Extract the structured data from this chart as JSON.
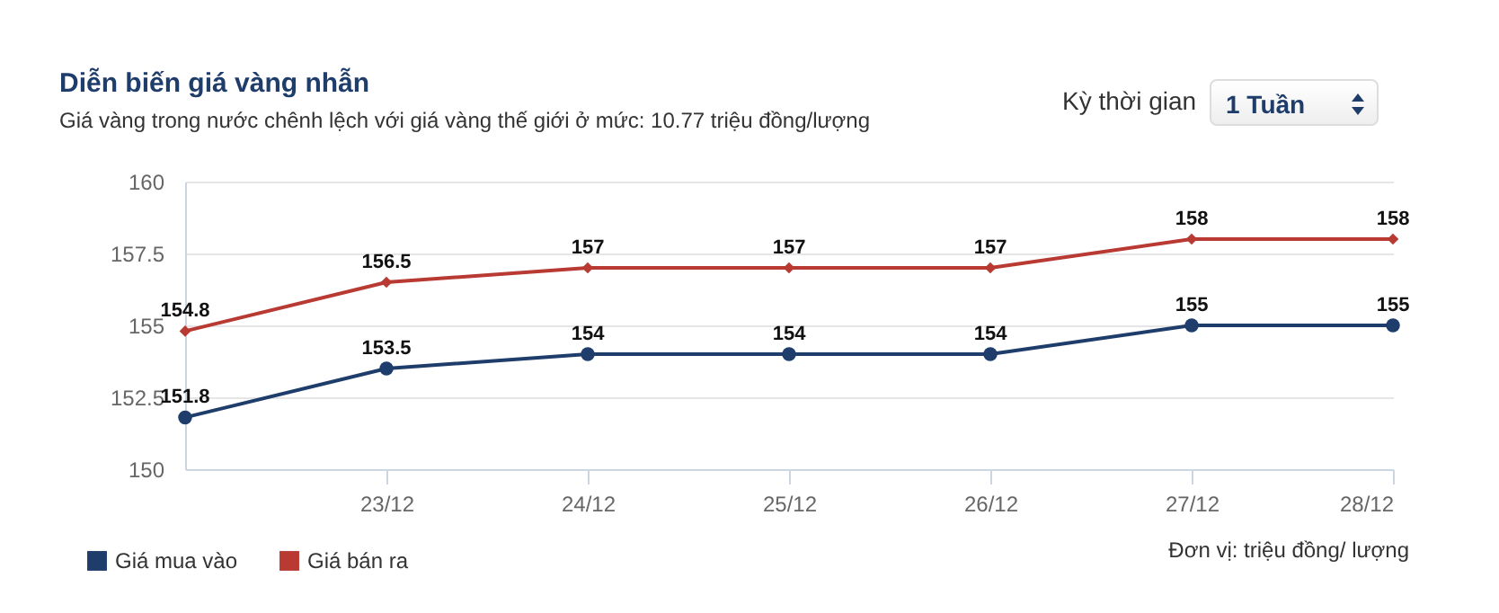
{
  "chart_data": {
    "type": "line",
    "title": "Diễn biến giá vàng nhẫn",
    "subtitle": "Giá vàng trong nước chênh lệch với giá vàng thế giới ở mức: 10.77 triệu đồng/lượng",
    "x": [
      "--12-22",
      "--12-23",
      "--12-24",
      "--12-25",
      "--12-26",
      "--12-27",
      "--12-28"
    ],
    "xlim": [
      "--12-22",
      "--12-28"
    ],
    "xticks": [
      {
        "value": "--12-23",
        "label": "23/12"
      },
      {
        "value": "--12-24",
        "label": "24/12"
      },
      {
        "value": "--12-25",
        "label": "25/12"
      },
      {
        "value": "--12-26",
        "label": "26/12"
      },
      {
        "value": "--12-27",
        "label": "27/12"
      },
      {
        "value": "--12-28",
        "label": "28/12"
      }
    ],
    "ylim": [
      150,
      160
    ],
    "yticks": [
      150,
      152.5,
      155,
      157.5,
      160
    ],
    "series": [
      {
        "name": "Giá mua vào",
        "color": "#1f3d6b",
        "marker": "circle",
        "values": [
          151.8,
          153.5,
          154,
          154,
          154,
          155,
          155
        ]
      },
      {
        "name": "Giá bán ra",
        "color": "#b83a33",
        "marker": "diamond",
        "values": [
          154.8,
          156.5,
          157,
          157,
          157,
          158,
          158
        ]
      }
    ],
    "data_labels": true,
    "grid": "y",
    "legend": "bottom left",
    "line_style": "solid",
    "annotations": [
      "Đơn vị: triệu đồng/ lượng",
      "Kỳ thời gian",
      "1 Tuần"
    ]
  }
}
